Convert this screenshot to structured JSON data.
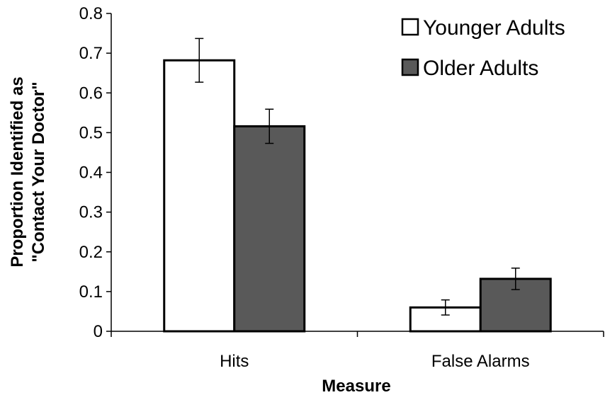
{
  "chart_data": {
    "type": "bar",
    "title": "",
    "xlabel": "Measure",
    "ylabel": "Proportion Identified  as \"Contact Your Doctor\"",
    "ylabel_lines": [
      "Proportion Identified  as",
      "\"Contact Your Doctor\""
    ],
    "ylim": [
      0,
      0.8
    ],
    "yticks": [
      0,
      0.1,
      0.2,
      0.3,
      0.4,
      0.5,
      0.6,
      0.7,
      0.8
    ],
    "ytick_labels": [
      "0",
      "0.1",
      "0.2",
      "0.3",
      "0.4",
      "0.5",
      "0.6",
      "0.7",
      "0.8"
    ],
    "categories": [
      "Hits",
      "False Alarms"
    ],
    "grid": false,
    "legend_position": "top-right",
    "series": [
      {
        "name": "Younger Adults",
        "color": "#ffffff",
        "values": [
          0.682,
          0.06
        ],
        "errors": [
          0.055,
          0.019
        ]
      },
      {
        "name": "Older Adults",
        "color": "#595959",
        "values": [
          0.516,
          0.132
        ],
        "errors": [
          0.043,
          0.027
        ]
      }
    ]
  }
}
